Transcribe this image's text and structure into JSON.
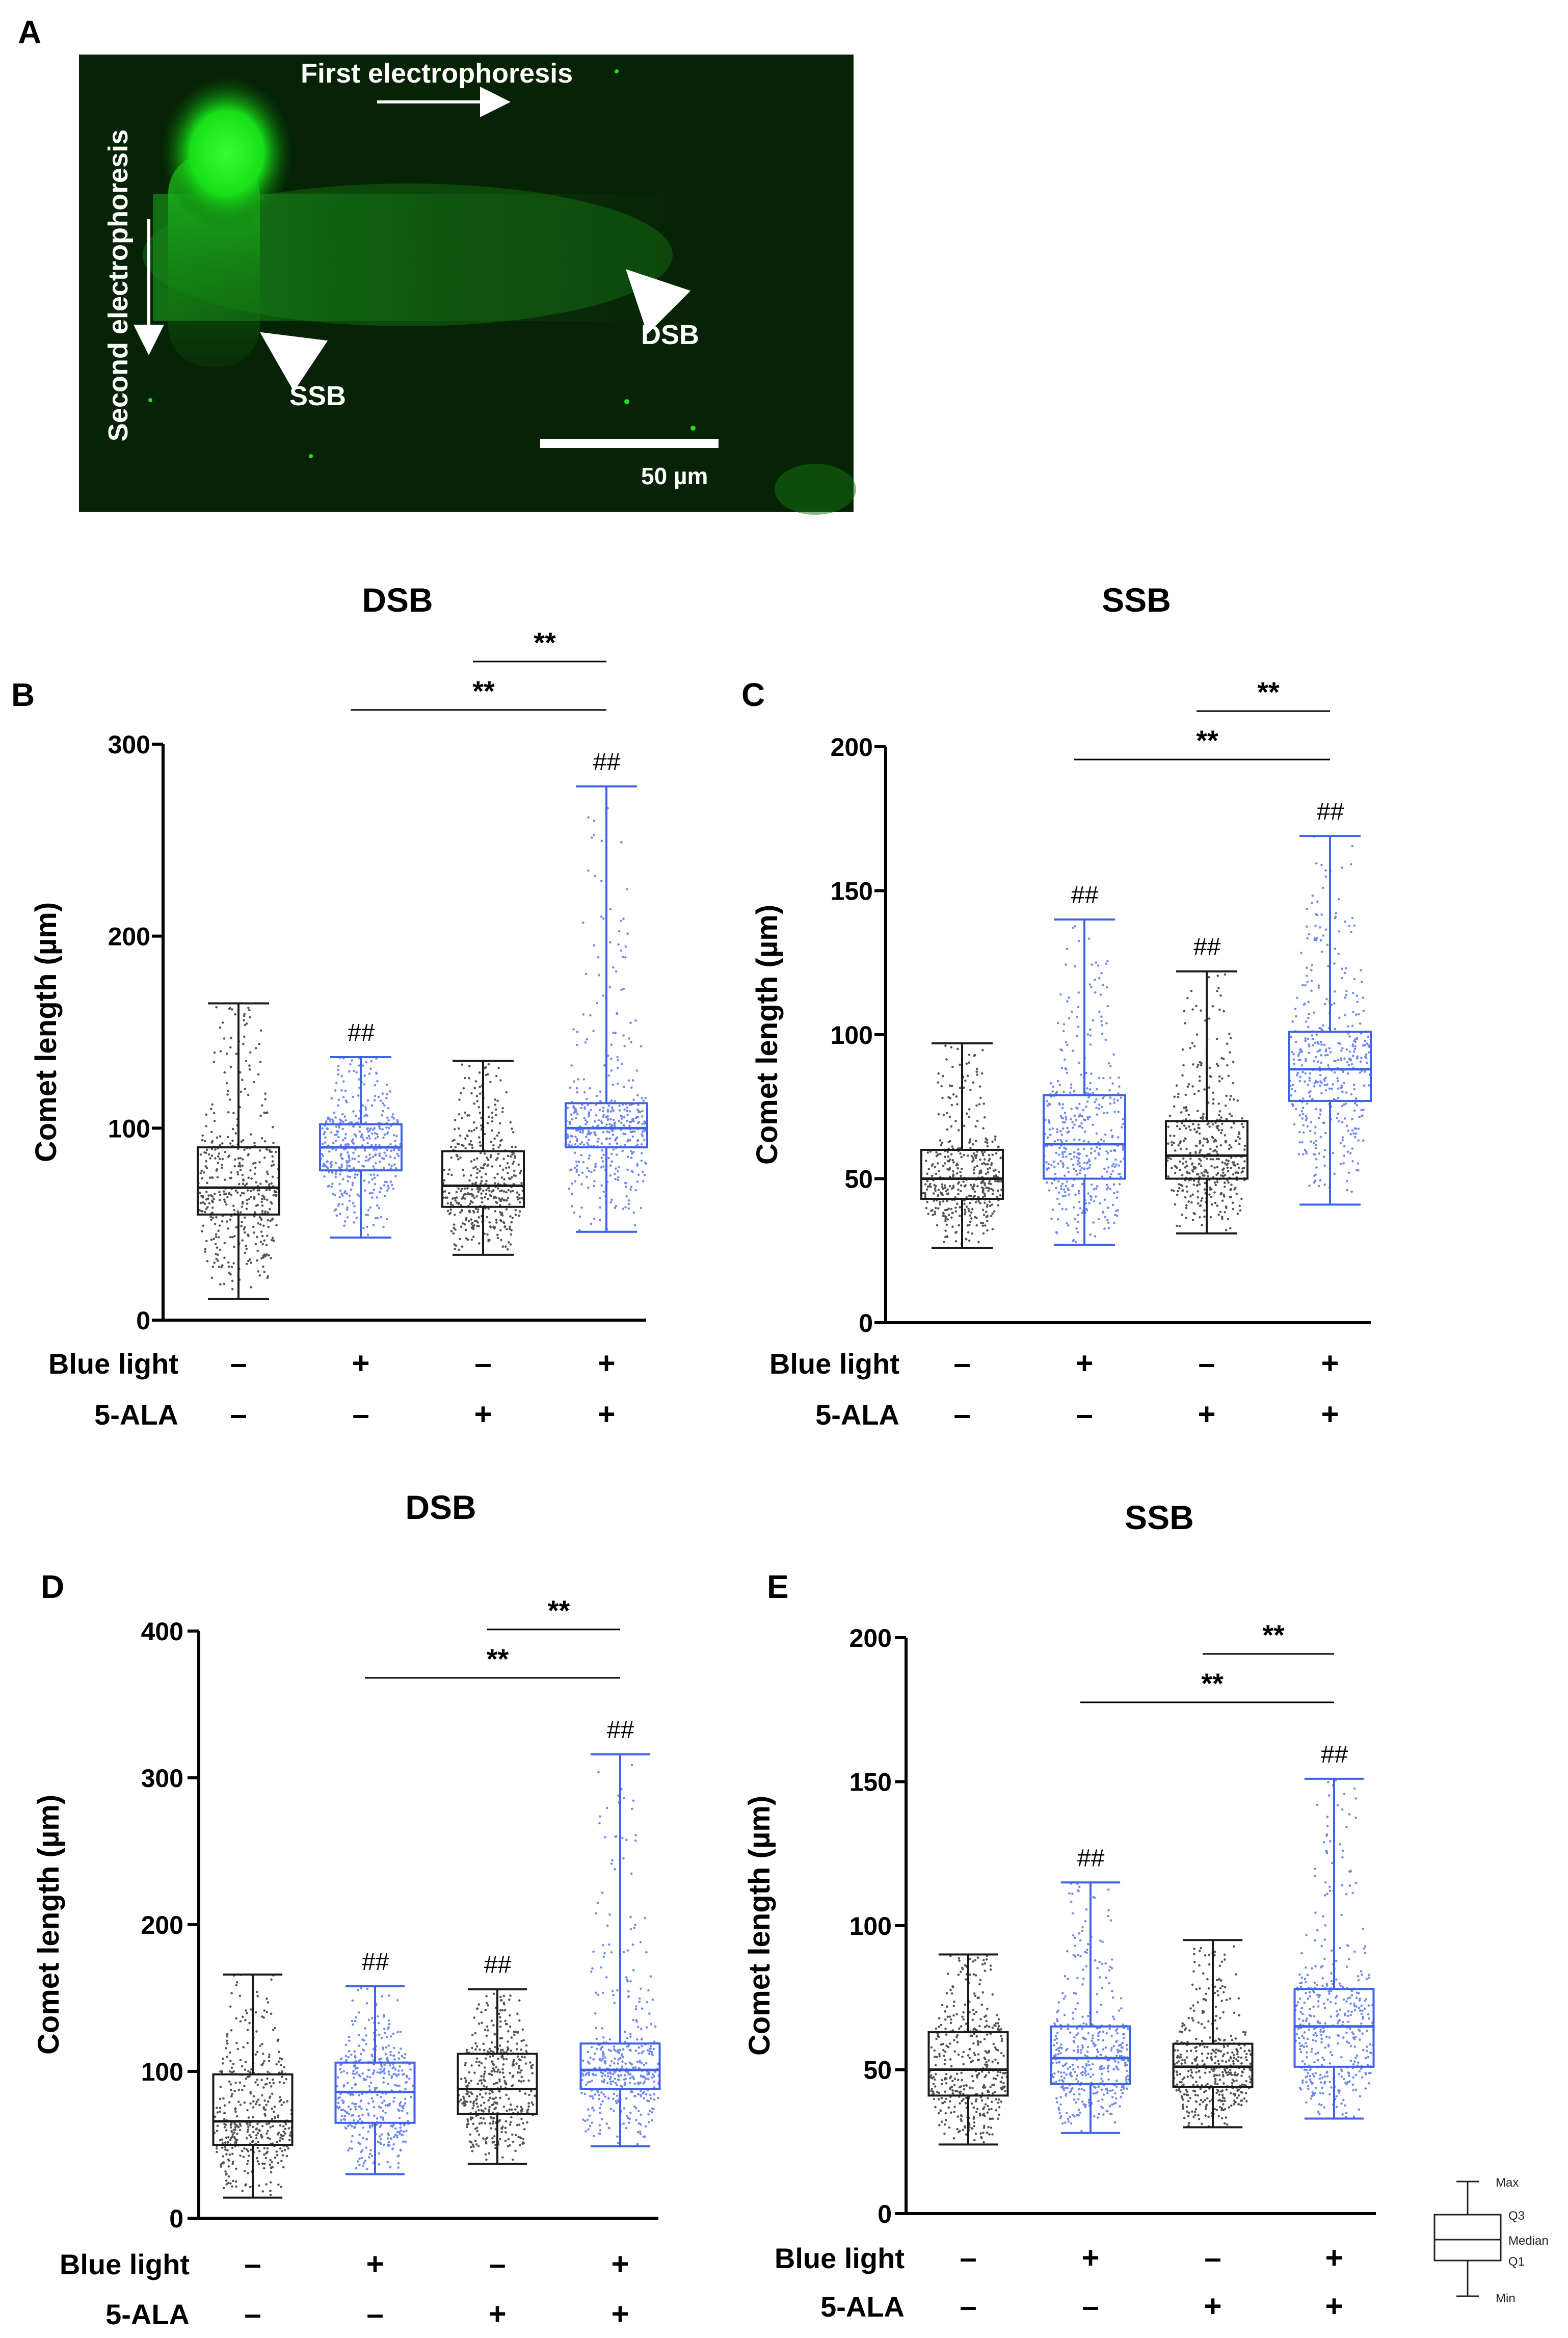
{
  "panel_labels": [
    "A",
    "B",
    "C",
    "D",
    "E"
  ],
  "micrograph": {
    "first_label": "First electrophoresis",
    "second_label": "Second electrophoresis",
    "ssb_label": "SSB",
    "dsb_label": "DSB",
    "scale_label": "50 µm"
  },
  "row_labels": {
    "blue_light": "Blue light",
    "ala": "5-ALA"
  },
  "signs": {
    "plus": "+",
    "minus": "–"
  },
  "sig": {
    "double_star": "**",
    "double_hash": "##"
  },
  "legend": {
    "max": "Max",
    "q3": "Q3",
    "median": "Median",
    "q1": "Q1",
    "min": "Min"
  },
  "colors": {
    "black": "#1a1a1a",
    "blue": "#3f62e6",
    "micro_bg": "#062306",
    "green": "#19e619"
  },
  "chart_data": [
    {
      "panel": "B",
      "type": "box",
      "title": "DSB",
      "ylabel": "Comet length (µm)",
      "ylim": [
        0,
        300
      ],
      "yticks": [
        0,
        100,
        200,
        300
      ],
      "blue_light": [
        "–",
        "+",
        "–",
        "+"
      ],
      "ala": [
        "–",
        "–",
        "+",
        "+"
      ],
      "groups": [
        {
          "min": 11,
          "q1": 55,
          "median": 69,
          "q3": 90,
          "max": 165,
          "color": "black",
          "hash": ""
        },
        {
          "min": 43,
          "q1": 78,
          "median": 90,
          "q3": 102,
          "max": 137,
          "color": "blue",
          "hash": "##"
        },
        {
          "min": 34,
          "q1": 59,
          "median": 70,
          "q3": 88,
          "max": 135,
          "color": "black",
          "hash": ""
        },
        {
          "min": 46,
          "q1": 90,
          "median": 100,
          "q3": 113,
          "max": 278,
          "color": "blue",
          "hash": "##"
        }
      ],
      "brackets": [
        {
          "from": 1,
          "to": 3,
          "label": "**"
        },
        {
          "from": 2,
          "to": 3,
          "label": "**"
        }
      ]
    },
    {
      "panel": "C",
      "type": "box",
      "title": "SSB",
      "ylabel": "Comet length (µm)",
      "ylim": [
        0,
        200
      ],
      "yticks": [
        0,
        50,
        100,
        150,
        200
      ],
      "blue_light": [
        "–",
        "+",
        "–",
        "+"
      ],
      "ala": [
        "–",
        "–",
        "+",
        "+"
      ],
      "groups": [
        {
          "min": 26,
          "q1": 43,
          "median": 50,
          "q3": 60,
          "max": 97,
          "color": "black",
          "hash": ""
        },
        {
          "min": 27,
          "q1": 50,
          "median": 62,
          "q3": 79,
          "max": 140,
          "color": "blue",
          "hash": "##"
        },
        {
          "min": 31,
          "q1": 50,
          "median": 58,
          "q3": 70,
          "max": 122,
          "color": "black",
          "hash": "##"
        },
        {
          "min": 41,
          "q1": 77,
          "median": 88,
          "q3": 101,
          "max": 169,
          "color": "blue",
          "hash": "##"
        }
      ],
      "brackets": [
        {
          "from": 1,
          "to": 3,
          "label": "**"
        },
        {
          "from": 2,
          "to": 3,
          "label": "**"
        }
      ]
    },
    {
      "panel": "D",
      "type": "box",
      "title": "DSB",
      "ylabel": "Comet length (µm)",
      "ylim": [
        0,
        400
      ],
      "yticks": [
        0,
        100,
        200,
        300,
        400
      ],
      "blue_light": [
        "–",
        "+",
        "–",
        "+"
      ],
      "ala": [
        "–",
        "–",
        "+",
        "+"
      ],
      "groups": [
        {
          "min": 14,
          "q1": 50,
          "median": 66,
          "q3": 98,
          "max": 166,
          "color": "black",
          "hash": ""
        },
        {
          "min": 30,
          "q1": 65,
          "median": 86,
          "q3": 106,
          "max": 158,
          "color": "blue",
          "hash": "##"
        },
        {
          "min": 37,
          "q1": 71,
          "median": 88,
          "q3": 112,
          "max": 156,
          "color": "black",
          "hash": "##"
        },
        {
          "min": 49,
          "q1": 88,
          "median": 101,
          "q3": 119,
          "max": 316,
          "color": "blue",
          "hash": "##"
        }
      ],
      "brackets": [
        {
          "from": 1,
          "to": 3,
          "label": "**"
        },
        {
          "from": 2,
          "to": 3,
          "label": "**"
        }
      ]
    },
    {
      "panel": "E",
      "type": "box",
      "title": "SSB",
      "ylabel": "Comet length (µm)",
      "ylim": [
        0,
        200
      ],
      "yticks": [
        0,
        50,
        100,
        150,
        200
      ],
      "blue_light": [
        "–",
        "+",
        "–",
        "+"
      ],
      "ala": [
        "–",
        "–",
        "+",
        "+"
      ],
      "groups": [
        {
          "min": 24,
          "q1": 41,
          "median": 50,
          "q3": 63,
          "max": 90,
          "color": "black",
          "hash": ""
        },
        {
          "min": 28,
          "q1": 45,
          "median": 54,
          "q3": 65,
          "max": 115,
          "color": "blue",
          "hash": "##"
        },
        {
          "min": 30,
          "q1": 44,
          "median": 51,
          "q3": 59,
          "max": 95,
          "color": "black",
          "hash": ""
        },
        {
          "min": 33,
          "q1": 51,
          "median": 65,
          "q3": 78,
          "max": 151,
          "color": "blue",
          "hash": "##"
        }
      ],
      "brackets": [
        {
          "from": 1,
          "to": 3,
          "label": "**"
        },
        {
          "from": 2,
          "to": 3,
          "label": "**"
        }
      ]
    }
  ]
}
